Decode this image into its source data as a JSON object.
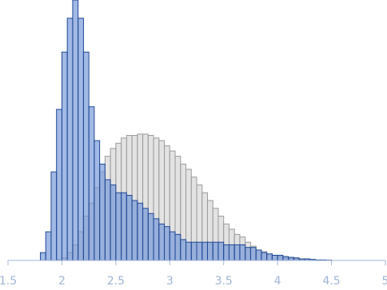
{
  "chart_data": {
    "type": "histogram",
    "bins": [
      1.8,
      1.85,
      1.9,
      1.95,
      2.0,
      2.05,
      2.1,
      2.15,
      2.2,
      2.25,
      2.3,
      2.35,
      2.4,
      2.45,
      2.5,
      2.55,
      2.6,
      2.65,
      2.7,
      2.75,
      2.8,
      2.85,
      2.9,
      2.95,
      3.0,
      3.05,
      3.1,
      3.15,
      3.2,
      3.25,
      3.3,
      3.35,
      3.4,
      3.45,
      3.5,
      3.55,
      3.6,
      3.65,
      3.7,
      3.75,
      3.8,
      3.85,
      3.9,
      3.95,
      4.0,
      4.05,
      4.1,
      4.15,
      4.2,
      4.25,
      4.3,
      4.35,
      4.4,
      4.45,
      4.5
    ],
    "series": [
      {
        "color": "#d9d9d9",
        "edge": "#9a9a9a",
        "values": [
          0,
          0,
          0,
          0.3,
          1,
          3,
          6,
          11,
          17,
          22,
          28,
          34,
          40,
          43,
          45,
          47,
          48,
          48,
          48.5,
          48.5,
          48,
          47,
          46,
          44,
          42,
          40,
          37,
          35,
          32,
          29,
          26,
          23,
          20,
          17,
          14,
          12,
          10,
          9,
          7,
          5.5,
          4,
          3.4,
          2.5,
          2,
          1.5,
          1,
          0.8,
          0.6,
          0.4,
          0.3,
          0.2,
          0.15,
          0.1,
          0.1
        ]
      },
      {
        "color": "#6f94d6",
        "edge": "#1f4796",
        "values": [
          3,
          11,
          34,
          58,
          80,
          93,
          100,
          93,
          80,
          59,
          46,
          37,
          31,
          29,
          26,
          26,
          25,
          23,
          22,
          20,
          18,
          16,
          14,
          13,
          11,
          10,
          8,
          7,
          7,
          7,
          7,
          7,
          7,
          7,
          6,
          6,
          6,
          6,
          5,
          5,
          4,
          3,
          2.5,
          2,
          2,
          1.5,
          1.2,
          1,
          0.6,
          0.6,
          0.4,
          0.2,
          0.2,
          0.1
        ]
      }
    ],
    "xlim": [
      1.5,
      5
    ],
    "xticks": [
      1.5,
      2,
      2.5,
      3,
      3.5,
      4,
      4.5,
      5
    ],
    "ylim": [
      0,
      100
    ]
  }
}
